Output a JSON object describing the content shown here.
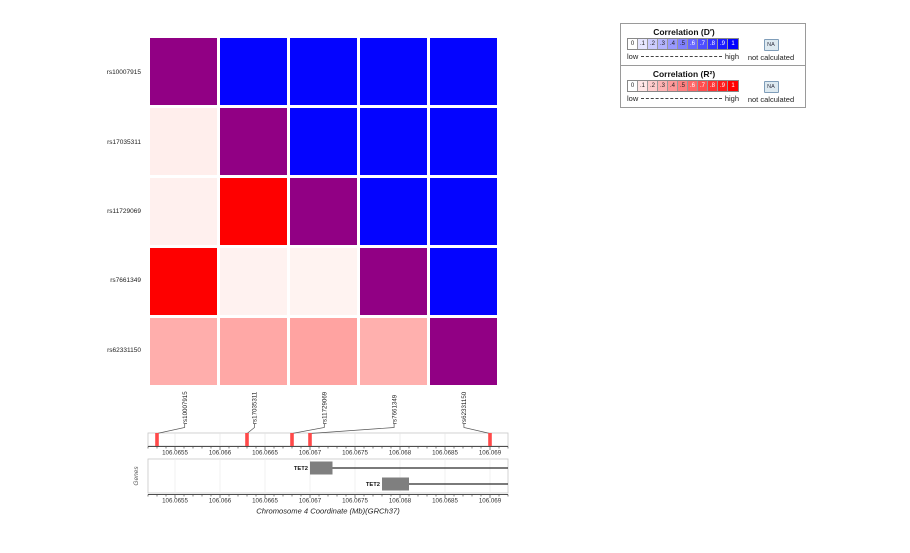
{
  "colors": {
    "diagonal_purple": "#910084",
    "dprime_blue": "#0404FF",
    "r2_red": "#FE0000",
    "snp_marker_red": "#FF4949",
    "gene_box_gray": "#7F7F7F",
    "panel_border": "#C8C8C8",
    "gridline": "#E4E4E4",
    "axis": "#4D4D4D"
  },
  "legend": {
    "panels": [
      {
        "title": "Correlation (D′)",
        "scale_labels": [
          "0",
          ".1",
          ".2",
          ".3",
          ".4",
          ".5",
          ".6",
          ".7",
          ".8",
          ".9",
          "1"
        ],
        "scale_colors": [
          "#FFFFFF",
          "#E6E6FF",
          "#CCCCFF",
          "#B3B3FF",
          "#9999FF",
          "#8080FF",
          "#6666FF",
          "#4D4DFF",
          "#3333FF",
          "#1A1AFF",
          "#0000FF"
        ],
        "low_label": "low",
        "high_label": "high",
        "na_label": "NA",
        "na_caption": "not calculated"
      },
      {
        "title": "Correlation (R²)",
        "scale_labels": [
          "0",
          ".1",
          ".2",
          ".3",
          ".4",
          ".5",
          ".6",
          ".7",
          ".8",
          ".9",
          "1"
        ],
        "scale_colors": [
          "#FFFFFF",
          "#FFE6E6",
          "#FFCCCC",
          "#FFB3B3",
          "#FF9999",
          "#FF8080",
          "#FF6666",
          "#FF4D4D",
          "#FF3333",
          "#FF1A1A",
          "#FF0000"
        ],
        "low_label": "low",
        "high_label": "high",
        "na_label": "NA",
        "na_caption": "not calculated"
      }
    ]
  },
  "chart_data": {
    "type": "heatmap",
    "description": "Pairwise linkage-disequilibrium matrix: upper triangle D' (blue), lower triangle R2 (red), diagonal purple",
    "snps": [
      "rs10007915",
      "rs17035311",
      "rs11729069",
      "rs7661349",
      "rs62331150"
    ],
    "snp_positions_mb": [
      106.0653,
      106.0663,
      106.0668,
      106.067,
      106.069
    ],
    "upper_triangle_metric": "D'",
    "lower_triangle_metric": "R2",
    "matrix_values": [
      [
        null,
        1.0,
        1.0,
        1.0,
        1.0
      ],
      [
        0.07,
        null,
        1.0,
        1.0,
        1.0
      ],
      [
        0.06,
        1.0,
        null,
        1.0,
        1.0
      ],
      [
        1.0,
        0.05,
        0.05,
        null,
        1.0
      ],
      [
        0.32,
        0.34,
        0.36,
        0.31,
        null
      ]
    ],
    "matrix_colors": [
      [
        "#910084",
        "#0404FF",
        "#0404FF",
        "#0404FF",
        "#0404FF"
      ],
      [
        "#FFEEEC",
        "#910084",
        "#0404FF",
        "#0404FF",
        "#0404FF"
      ],
      [
        "#FFF0EE",
        "#FE0000",
        "#910084",
        "#0404FF",
        "#0404FF"
      ],
      [
        "#FE0000",
        "#FFF2F0",
        "#FFF3F1",
        "#910084",
        "#0404FF"
      ],
      [
        "#FFAEAC",
        "#FFA8A6",
        "#FFA3A1",
        "#FFB0AE",
        "#910084"
      ]
    ],
    "x_axis": {
      "label": "Chromosome 4 Coordinate (Mb)(GRCh37)",
      "range_mb": [
        106.0652,
        106.0692
      ],
      "minor_tick_step_mb": 0.0001,
      "major_ticks": [
        {
          "mb": 106.0655,
          "label": "106.0655"
        },
        {
          "mb": 106.066,
          "label": "106.066"
        },
        {
          "mb": 106.0665,
          "label": "106.0665"
        },
        {
          "mb": 106.067,
          "label": "106.067"
        },
        {
          "mb": 106.0675,
          "label": "106.0675"
        },
        {
          "mb": 106.068,
          "label": "106.068"
        },
        {
          "mb": 106.0685,
          "label": "106.0685"
        },
        {
          "mb": 106.069,
          "label": "106.069"
        }
      ]
    },
    "genes_axis_label": "Genes",
    "genes": [
      {
        "name": "TET2",
        "exon_start_mb": 106.067,
        "exon_end_mb": 106.06725,
        "line_end_mb": 106.0692
      },
      {
        "name": "TET2",
        "exon_start_mb": 106.0678,
        "exon_end_mb": 106.0681,
        "line_end_mb": 106.0692
      }
    ]
  }
}
